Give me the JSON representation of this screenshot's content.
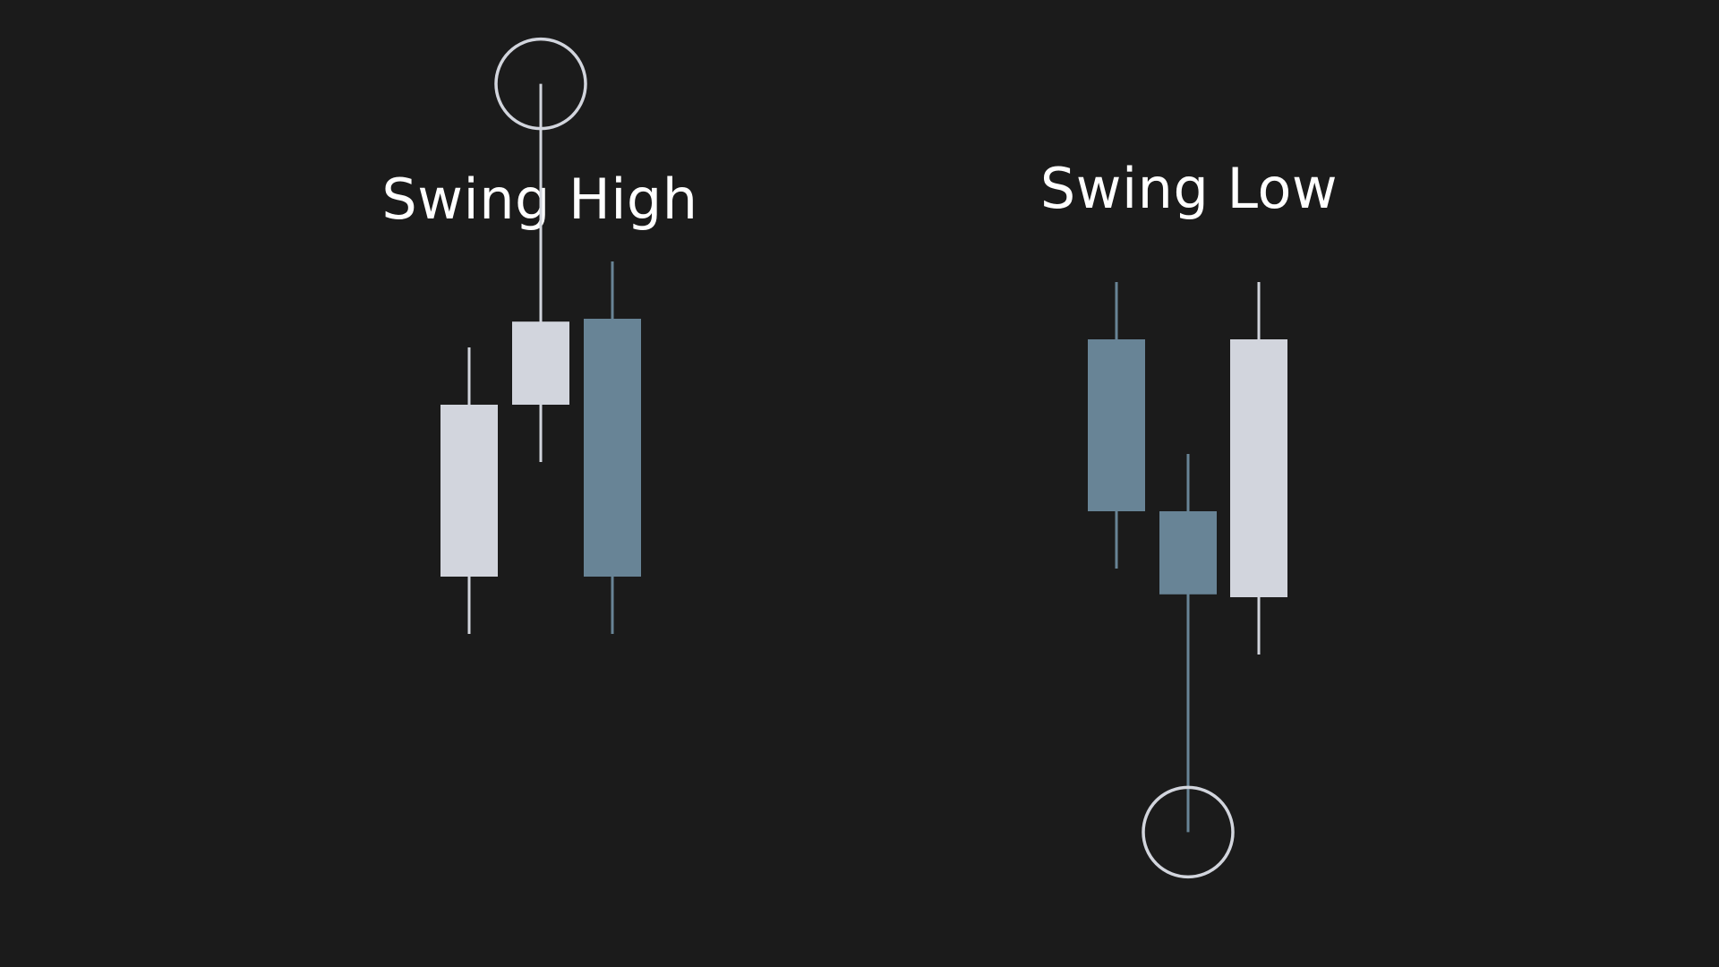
{
  "colors": {
    "background": "#1b1b1b",
    "text": "#ffffff",
    "bullish": "#d2d5dd",
    "bearish": "#688496",
    "marker": "#d2d5dd"
  },
  "swing_high": {
    "title": "Swing High",
    "candles": [
      {
        "direction": "bullish",
        "open": 4.0,
        "close": 7.0,
        "high": 8.0,
        "low": 3.0
      },
      {
        "direction": "bullish",
        "open": 7.0,
        "close": 8.45,
        "high": 12.6,
        "low": 6.0
      },
      {
        "direction": "bearish",
        "open": 8.5,
        "close": 4.0,
        "high": 9.5,
        "low": 3.0
      }
    ],
    "marker": "high-of-middle-candle"
  },
  "swing_low": {
    "title": "Swing Low",
    "candles": [
      {
        "direction": "bearish",
        "open": 10.0,
        "close": 7.0,
        "high": 11.0,
        "low": 6.0
      },
      {
        "direction": "bearish",
        "open": 7.0,
        "close": 5.55,
        "high": 8.0,
        "low": 1.4
      },
      {
        "direction": "bullish",
        "open": 5.5,
        "close": 10.0,
        "high": 11.0,
        "low": 4.5
      }
    ],
    "marker": "low-of-middle-candle"
  }
}
